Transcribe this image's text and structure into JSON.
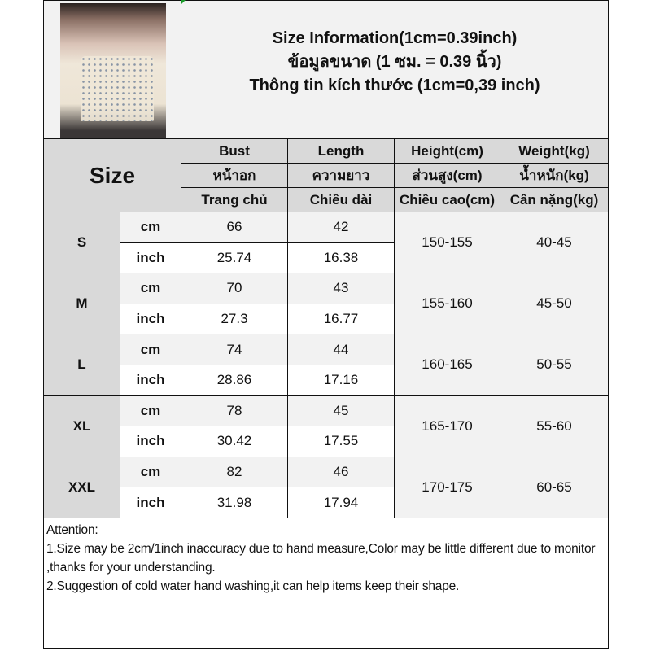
{
  "title_lines": [
    "Size Information(1cm=0.39inch)",
    "ข้อมูลขนาด (1 ซม. = 0.39 นิ้ว)",
    "Thông tin kích thước (1cm=0,39 inch)"
  ],
  "size_header": "Size",
  "columns": [
    {
      "en": "Bust",
      "th": "หน้าอก",
      "vi": "Trang chủ"
    },
    {
      "en": "Length",
      "th": "ความยาว",
      "vi": "Chiều dài"
    },
    {
      "en": "Height(cm)",
      "th": "ส่วนสูง(cm)",
      "vi": "Chiều cao(cm)"
    },
    {
      "en": "Weight(kg)",
      "th": "น้ำหนัก(kg)",
      "vi": "Cân nặng(kg)"
    }
  ],
  "units": {
    "cm": "cm",
    "inch": "inch"
  },
  "sizes": [
    {
      "name": "S",
      "cm": [
        "66",
        "42"
      ],
      "inch": [
        "25.74",
        "16.38"
      ],
      "height": "150-155",
      "weight": "40-45"
    },
    {
      "name": "M",
      "cm": [
        "70",
        "43"
      ],
      "inch": [
        "27.3",
        "16.77"
      ],
      "height": "155-160",
      "weight": "45-50"
    },
    {
      "name": "L",
      "cm": [
        "74",
        "44"
      ],
      "inch": [
        "28.86",
        "17.16"
      ],
      "height": "160-165",
      "weight": "50-55"
    },
    {
      "name": "XL",
      "cm": [
        "78",
        "45"
      ],
      "inch": [
        "30.42",
        "17.55"
      ],
      "height": "165-170",
      "weight": "55-60"
    },
    {
      "name": "XXL",
      "cm": [
        "82",
        "46"
      ],
      "inch": [
        "31.98",
        "17.94"
      ],
      "height": "170-175",
      "weight": "60-65"
    }
  ],
  "attention": [
    "Attention:",
    "1.Size may be 2cm/1inch inaccuracy due to hand measure,Color may be little different due to monitor ,thanks for your understanding.",
    "2.Suggestion of cold water hand washing,it can help items keep their shape."
  ],
  "colors": {
    "header_bg": "#d9d9d9",
    "light_bg": "#f2f2f2",
    "border": "#111111"
  }
}
